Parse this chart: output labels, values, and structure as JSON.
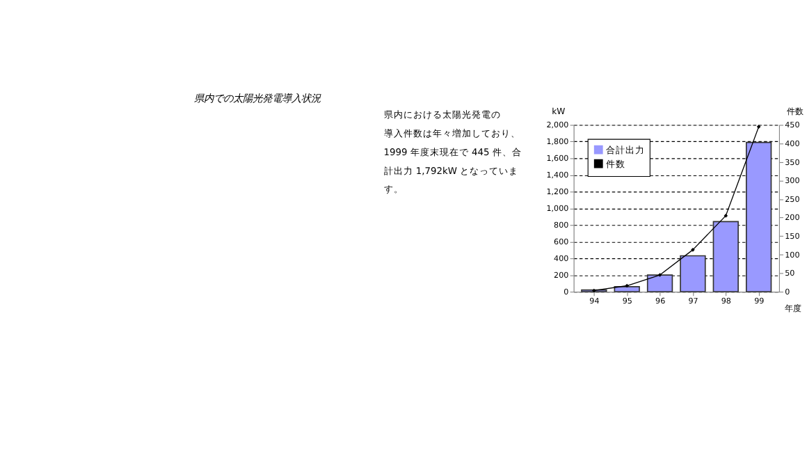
{
  "chart_data": {
    "type": "bar",
    "title": "県内での太陽光発電導入状況",
    "annotations": [
      "　県内における太陽光発電の",
      "導入件数は年々増加しており、",
      "1999 年度末現在で 445 件、合",
      "計出力 1,792kW となっていま",
      "す。"
    ],
    "categories": [
      "94",
      "95",
      "96",
      "97",
      "98",
      "99"
    ],
    "xlabel": "年度",
    "ylabel": "kW",
    "y2label": "件数",
    "series": [
      {
        "name": "合計出力",
        "color": "#9999ff",
        "values": [
          20,
          60,
          200,
          430,
          840,
          1790
        ]
      },
      {
        "name": "件数",
        "type": "line",
        "axis": "y2",
        "color": "#000000",
        "values": [
          3,
          16,
          45,
          113,
          205,
          445
        ]
      }
    ],
    "ylim": [
      0,
      2000
    ],
    "yticks": [
      0,
      200,
      400,
      600,
      800,
      {
        "value": 1000,
        "label": "1,000"
      },
      {
        "value": 1200,
        "label": "1,200"
      },
      {
        "value": 1400,
        "label": "1,400"
      },
      {
        "value": 1600,
        "label": "1,600"
      },
      {
        "value": 1800,
        "label": "1,800"
      },
      {
        "value": 2000,
        "label": "2,000"
      }
    ],
    "y2lim": [
      0,
      450
    ],
    "y2ticks": [
      0,
      50,
      100,
      150,
      200,
      250,
      300,
      350,
      400,
      450
    ],
    "grid": "y",
    "legend": "top left",
    "marker": "diamond",
    "line_style": "solid"
  }
}
